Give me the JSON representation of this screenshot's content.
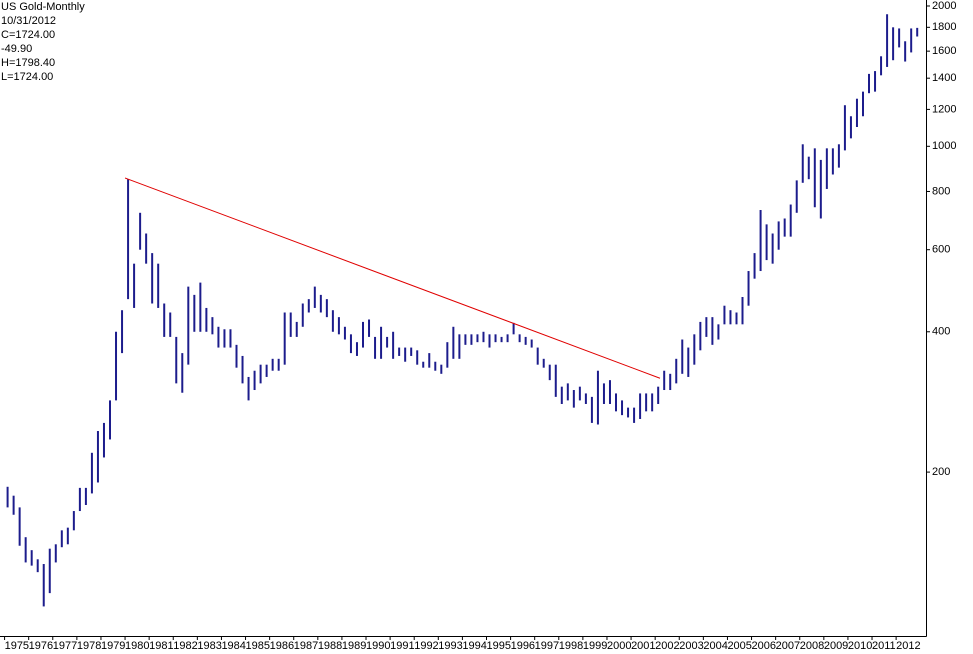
{
  "chart_data": {
    "type": "ohlc",
    "title": "US Gold-Monthly",
    "info": {
      "date": "10/31/2012",
      "close": "C=1724.00",
      "change": "-49.90",
      "change_color": "#e00000",
      "high": "H=1798.40",
      "low": "L=1724.00"
    },
    "log_scale": true,
    "xlim": [
      1974.81,
      2013.24
    ],
    "ylim": [
      89,
      2060
    ],
    "yticks": [
      200,
      400,
      600,
      800,
      1000,
      1200,
      1400,
      1600,
      1800,
      2000
    ],
    "xticks": [
      1975,
      1976,
      1977,
      1978,
      1979,
      1980,
      1981,
      1982,
      1983,
      1984,
      1985,
      1986,
      1987,
      1988,
      1989,
      1990,
      1991,
      1992,
      1993,
      1994,
      1995,
      1996,
      1997,
      1998,
      1999,
      2000,
      2001,
      2002,
      2003,
      2004,
      2005,
      2006,
      2007,
      2008,
      2009,
      2010,
      2011,
      2012
    ],
    "color": "#1c1c8c",
    "x": [
      1975.125,
      1975.375,
      1975.625,
      1975.875,
      1976.125,
      1976.375,
      1976.625,
      1976.875,
      1977.125,
      1977.375,
      1977.625,
      1977.875,
      1978.125,
      1978.375,
      1978.625,
      1978.875,
      1979.125,
      1979.375,
      1979.625,
      1979.875,
      1980.125,
      1980.375,
      1980.625,
      1980.875,
      1981.125,
      1981.375,
      1981.625,
      1981.875,
      1982.125,
      1982.375,
      1982.625,
      1982.875,
      1983.125,
      1983.375,
      1983.625,
      1983.875,
      1984.125,
      1984.375,
      1984.625,
      1984.875,
      1985.125,
      1985.375,
      1985.625,
      1985.875,
      1986.125,
      1986.375,
      1986.625,
      1986.875,
      1987.125,
      1987.375,
      1987.625,
      1987.875,
      1988.125,
      1988.375,
      1988.625,
      1988.875,
      1989.125,
      1989.375,
      1989.625,
      1989.875,
      1990.125,
      1990.375,
      1990.625,
      1990.875,
      1991.125,
      1991.375,
      1991.625,
      1991.875,
      1992.125,
      1992.375,
      1992.625,
      1992.875,
      1993.125,
      1993.375,
      1993.625,
      1993.875,
      1994.125,
      1994.375,
      1994.625,
      1994.875,
      1995.125,
      1995.375,
      1995.625,
      1995.875,
      1996.125,
      1996.375,
      1996.625,
      1996.875,
      1997.125,
      1997.375,
      1997.625,
      1997.875,
      1998.125,
      1998.375,
      1998.625,
      1998.875,
      1999.125,
      1999.375,
      1999.625,
      1999.875,
      2000.125,
      2000.375,
      2000.625,
      2000.875,
      2001.125,
      2001.375,
      2001.625,
      2001.875,
      2002.125,
      2002.375,
      2002.625,
      2002.875,
      2003.125,
      2003.375,
      2003.625,
      2003.875,
      2004.125,
      2004.375,
      2004.625,
      2004.875,
      2005.125,
      2005.375,
      2005.625,
      2005.875,
      2006.125,
      2006.375,
      2006.625,
      2006.875,
      2007.125,
      2007.375,
      2007.625,
      2007.875,
      2008.125,
      2008.375,
      2008.625,
      2008.875,
      2009.125,
      2009.375,
      2009.625,
      2009.875,
      2010.125,
      2010.375,
      2010.625,
      2010.875,
      2011.125,
      2011.375,
      2011.625,
      2011.875,
      2012.125,
      2012.375,
      2012.625,
      2012.875
    ],
    "high": [
      186,
      178,
      168,
      145,
      136,
      130,
      127,
      137,
      140,
      150,
      152,
      165,
      185,
      185,
      220,
      245,
      255,
      285,
      400,
      445,
      850,
      560,
      720,
      650,
      590,
      560,
      460,
      440,
      390,
      360,
      500,
      480,
      510,
      450,
      430,
      410,
      405,
      405,
      375,
      355,
      320,
      330,
      340,
      340,
      350,
      350,
      440,
      440,
      420,
      460,
      470,
      500,
      480,
      470,
      445,
      430,
      410,
      395,
      380,
      420,
      425,
      390,
      410,
      390,
      400,
      370,
      370,
      370,
      365,
      345,
      360,
      345,
      340,
      380,
      410,
      395,
      395,
      395,
      395,
      400,
      395,
      395,
      390,
      395,
      418,
      395,
      390,
      385,
      370,
      350,
      340,
      340,
      305,
      310,
      300,
      305,
      295,
      290,
      330,
      310,
      315,
      295,
      285,
      275,
      275,
      295,
      295,
      295,
      305,
      330,
      325,
      350,
      385,
      370,
      395,
      420,
      430,
      430,
      415,
      455,
      445,
      440,
      475,
      540,
      590,
      730,
      680,
      650,
      690,
      700,
      750,
      845,
      1010,
      950,
      990,
      935,
      990,
      990,
      1010,
      1225,
      1160,
      1265,
      1310,
      1430,
      1450,
      1560,
      1920,
      1800,
      1790,
      1680,
      1790,
      1795
    ],
    "low": [
      168,
      162,
      139,
      128,
      126,
      122,
      103,
      110,
      128,
      138,
      140,
      150,
      165,
      170,
      180,
      190,
      215,
      235,
      285,
      360,
      470,
      450,
      600,
      560,
      460,
      450,
      390,
      390,
      310,
      296,
      340,
      400,
      400,
      400,
      395,
      370,
      370,
      370,
      335,
      310,
      285,
      300,
      310,
      320,
      330,
      330,
      340,
      390,
      390,
      410,
      440,
      450,
      440,
      430,
      400,
      395,
      385,
      360,
      355,
      370,
      390,
      350,
      350,
      370,
      350,
      355,
      345,
      355,
      340,
      335,
      335,
      330,
      325,
      335,
      350,
      350,
      375,
      375,
      380,
      380,
      370,
      380,
      380,
      380,
      395,
      380,
      375,
      370,
      340,
      335,
      315,
      290,
      280,
      285,
      275,
      285,
      280,
      255,
      253,
      280,
      280,
      270,
      265,
      262,
      255,
      260,
      270,
      270,
      280,
      300,
      300,
      310,
      325,
      320,
      340,
      365,
      390,
      375,
      385,
      415,
      415,
      415,
      415,
      455,
      520,
      540,
      570,
      560,
      600,
      640,
      640,
      720,
      835,
      850,
      740,
      700,
      810,
      870,
      900,
      980,
      1040,
      1100,
      1160,
      1300,
      1310,
      1420,
      1480,
      1530,
      1630,
      1520,
      1590,
      1720
    ],
    "trendline": {
      "x": [
        1980.0,
        2002.2
      ],
      "values": [
        855,
        318
      ],
      "color": "#e00000"
    }
  }
}
